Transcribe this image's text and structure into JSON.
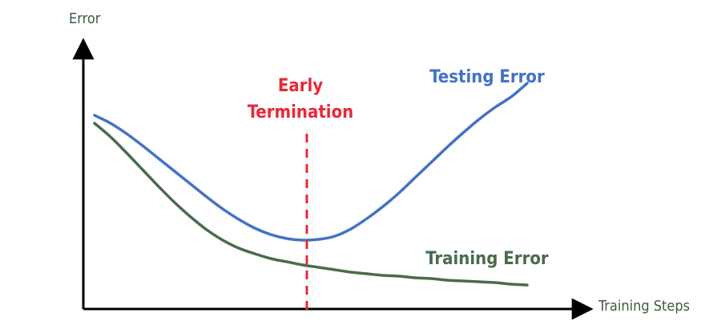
{
  "chart_data": {
    "type": "line",
    "title": "",
    "xlabel": "Training Steps",
    "ylabel": "Error",
    "grid": false,
    "series": [
      {
        "name": "Testing Error",
        "color": "#4472c4",
        "x": [
          0,
          20,
          40,
          60,
          80,
          100,
          120,
          140,
          160,
          180,
          200,
          220,
          240,
          260,
          280,
          300,
          320,
          340,
          360,
          380,
          400,
          420,
          440,
          460,
          480,
          500,
          520,
          540
        ],
        "y": [
          242,
          232,
          219,
          204,
          188,
          172,
          156,
          140,
          125,
          112,
          101,
          93,
          88,
          86,
          87,
          91,
          100,
          113,
          128,
          145,
          164,
          183,
          202,
          220,
          237,
          252,
          265,
          282
        ]
      },
      {
        "name": "Training Error",
        "color": "#4a6b4c",
        "x": [
          0,
          20,
          40,
          60,
          80,
          100,
          120,
          140,
          160,
          180,
          200,
          220,
          240,
          260,
          280,
          300,
          320,
          340,
          360,
          380,
          400,
          420,
          440,
          460,
          480,
          500,
          520,
          540
        ],
        "y": [
          232,
          215,
          195,
          174,
          153,
          133,
          115,
          99,
          86,
          76,
          69,
          63,
          59,
          55,
          52,
          49,
          46,
          44,
          42,
          41,
          39,
          38,
          36,
          35,
          34,
          33,
          31,
          30
        ]
      }
    ],
    "annotations": [
      {
        "text_lines": [
          "Early",
          "Termination"
        ],
        "type": "vertical-dashed-line",
        "x": 265,
        "color": "#e8283a"
      }
    ],
    "xlim": [
      0,
      640
    ],
    "ylim": [
      0,
      320
    ]
  }
}
